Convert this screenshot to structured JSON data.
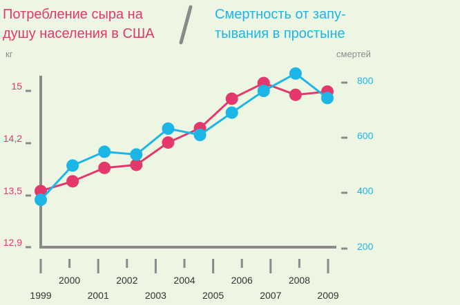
{
  "chart_data": {
    "type": "line",
    "title_left": [
      "Потребление сыра на",
      "душу населения в США"
    ],
    "title_right": [
      "Смертность от запу-",
      "тывания в простыне"
    ],
    "ylabel_left": "кг",
    "ylabel_right": "смертей",
    "left_ticks": [
      {
        "value": 15,
        "label": "15"
      },
      {
        "value": 14.2,
        "label": "14,2"
      },
      {
        "value": 13.5,
        "label": "13,5"
      },
      {
        "value": 12.9,
        "label": "12,9"
      }
    ],
    "right_ticks": [
      {
        "value": 800,
        "label": "800"
      },
      {
        "value": 600,
        "label": "600"
      },
      {
        "value": 400,
        "label": "400"
      },
      {
        "value": 200,
        "label": "200"
      }
    ],
    "x_ticks": [
      "1999",
      "2000",
      "2001",
      "2002",
      "2003",
      "2004",
      "2005",
      "2006",
      "2007",
      "2008",
      "2009"
    ],
    "series": [
      {
        "name": "Потребление сыра на душу населения в США",
        "axis": "left",
        "color": "#e4376c",
        "values": [
          13.56,
          13.69,
          13.87,
          13.91,
          14.21,
          14.43,
          14.88,
          15.12,
          14.94,
          14.99
        ]
      },
      {
        "name": "Смертность от запутывания в простыне",
        "axis": "right",
        "color": "#1cb6e6",
        "values": [
          370,
          494,
          544,
          534,
          628,
          605,
          686,
          765,
          828,
          739
        ]
      }
    ],
    "grid": false
  }
}
